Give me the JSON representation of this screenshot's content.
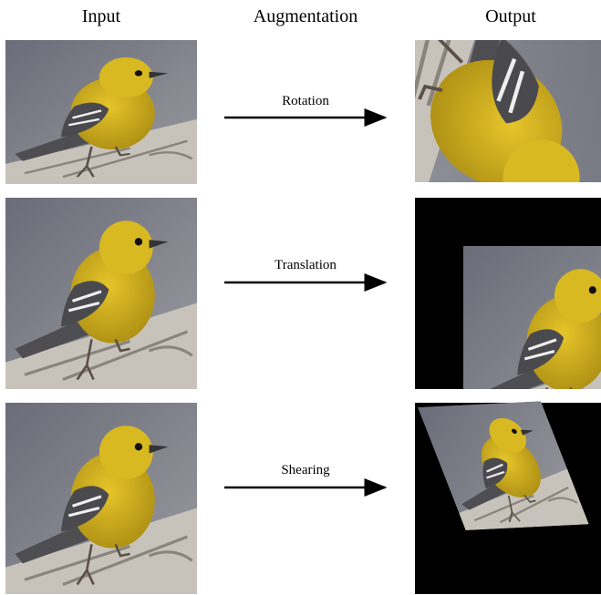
{
  "header": {
    "input": "Input",
    "augmentation": "Augmentation",
    "output": "Output"
  },
  "rows": [
    {
      "label": "Rotation"
    },
    {
      "label": "Translation"
    },
    {
      "label": "Shearing"
    }
  ]
}
